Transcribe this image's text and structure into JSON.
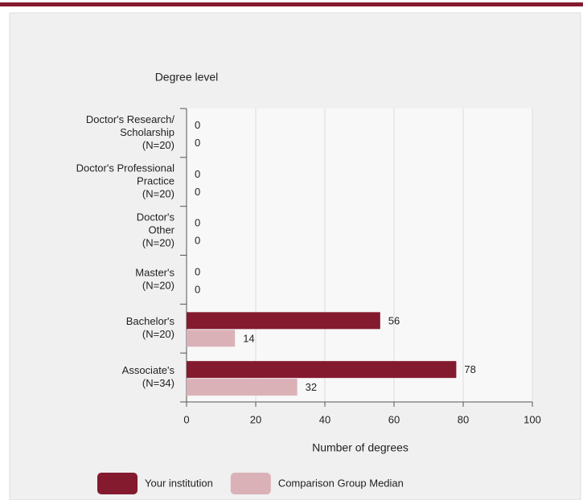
{
  "chart_data": {
    "type": "bar",
    "orientation": "horizontal",
    "title": "Degree level",
    "x_label": "Number of degrees",
    "categories": [
      [
        "Doctor's Research/",
        "Scholarship",
        "(N=20)"
      ],
      [
        "Doctor's Professional",
        "Practice",
        "(N=20)"
      ],
      [
        "Doctor's",
        "Other",
        "(N=20)"
      ],
      [
        "Master's",
        "(N=20)"
      ],
      [
        "Bachelor's",
        "(N=20)"
      ],
      [
        "Associate's",
        "(N=34)"
      ]
    ],
    "series": [
      {
        "name": "Your institution",
        "color": "#841a2e",
        "values": [
          0,
          0,
          0,
          0,
          56,
          78
        ]
      },
      {
        "name": "Comparison Group Median",
        "color": "#dbb1b8",
        "values": [
          0,
          0,
          0,
          0,
          14,
          32
        ]
      }
    ],
    "xlim": [
      0,
      100
    ],
    "xticks": [
      0,
      20,
      40,
      60,
      80,
      100
    ],
    "grid": true,
    "legend": "bottom"
  }
}
